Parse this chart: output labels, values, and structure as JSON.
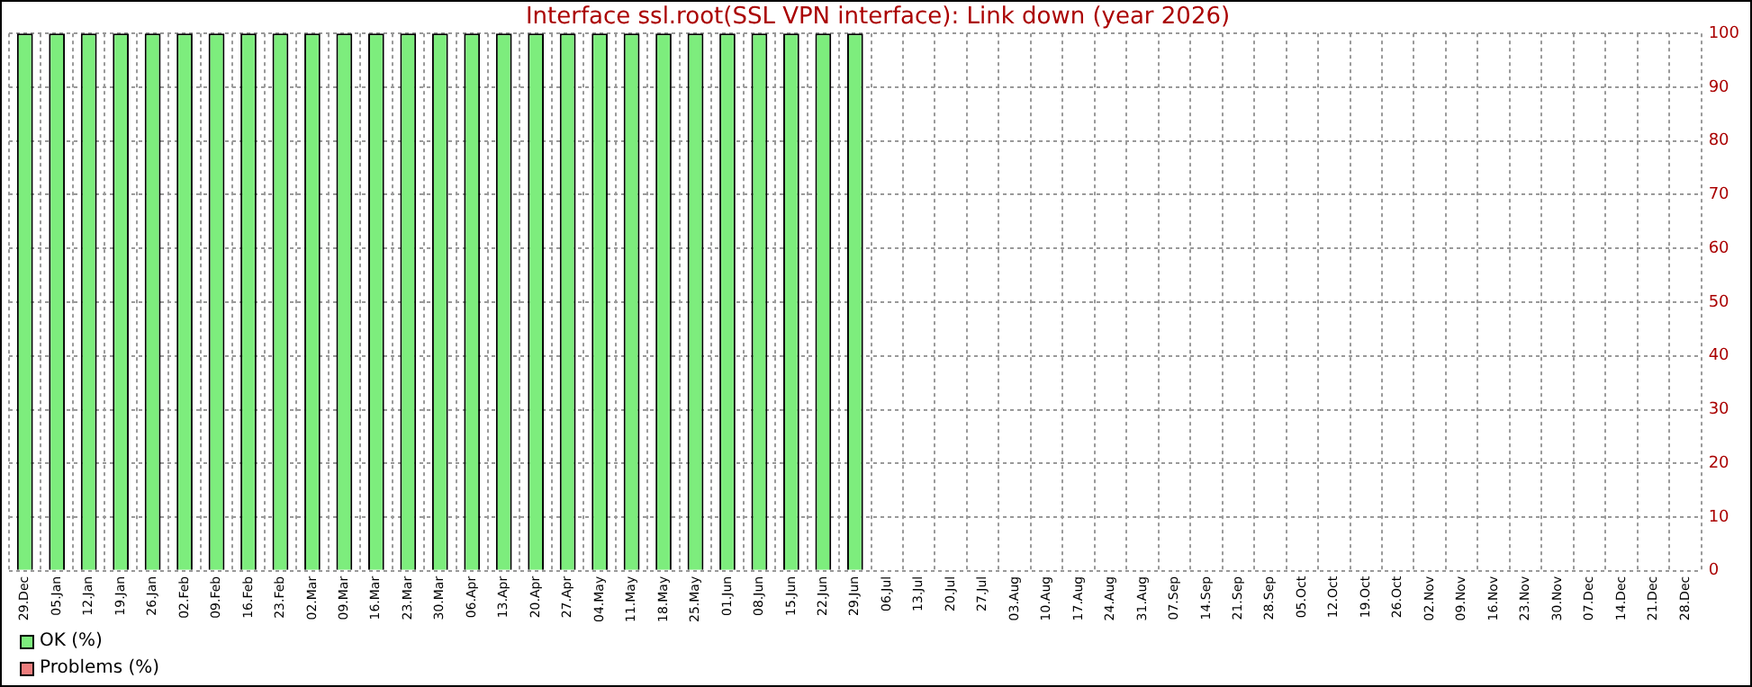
{
  "chart_data": {
    "type": "bar",
    "title": "Interface ssl.root(SSL VPN interface): Link down (year 2026)",
    "categories": [
      "29.Dec",
      "05.Jan",
      "12.Jan",
      "19.Jan",
      "26.Jan",
      "02.Feb",
      "09.Feb",
      "16.Feb",
      "23.Feb",
      "02.Mar",
      "09.Mar",
      "16.Mar",
      "23.Mar",
      "30.Mar",
      "06.Apr",
      "13.Apr",
      "20.Apr",
      "27.Apr",
      "04.May",
      "11.May",
      "18.May",
      "25.May",
      "01.Jun",
      "08.Jun",
      "15.Jun",
      "22.Jun",
      "29.Jun",
      "06.Jul",
      "13.Jul",
      "20.Jul",
      "27.Jul",
      "03.Aug",
      "10.Aug",
      "17.Aug",
      "24.Aug",
      "31.Aug",
      "07.Sep",
      "14.Sep",
      "21.Sep",
      "28.Sep",
      "05.Oct",
      "12.Oct",
      "19.Oct",
      "26.Oct",
      "02.Nov",
      "09.Nov",
      "16.Nov",
      "23.Nov",
      "30.Nov",
      "07.Dec",
      "14.Dec",
      "21.Dec",
      "28.Dec"
    ],
    "series": [
      {
        "name": "OK (%)",
        "color": "#7ded7d",
        "values": [
          100,
          100,
          100,
          100,
          100,
          100,
          100,
          100,
          100,
          100,
          100,
          100,
          100,
          100,
          100,
          100,
          100,
          100,
          100,
          100,
          100,
          100,
          100,
          100,
          100,
          100,
          100,
          null,
          null,
          null,
          null,
          null,
          null,
          null,
          null,
          null,
          null,
          null,
          null,
          null,
          null,
          null,
          null,
          null,
          null,
          null,
          null,
          null,
          null,
          null,
          null,
          null,
          null
        ]
      },
      {
        "name": "Problems (%)",
        "color": "#ed7d7d",
        "values": [
          0,
          0,
          0,
          0,
          0,
          0,
          0,
          0,
          0,
          0,
          0,
          0,
          0,
          0,
          0,
          0,
          0,
          0,
          0,
          0,
          0,
          0,
          0,
          0,
          0,
          0,
          0,
          null,
          null,
          null,
          null,
          null,
          null,
          null,
          null,
          null,
          null,
          null,
          null,
          null,
          null,
          null,
          null,
          null,
          null,
          null,
          null,
          null,
          null,
          null,
          null,
          null,
          null
        ]
      }
    ],
    "stacked": true,
    "ylim": [
      0,
      100
    ],
    "yticks": [
      0,
      10,
      20,
      30,
      40,
      50,
      60,
      70,
      80,
      90,
      100
    ],
    "grid": true,
    "legend": "bottom left"
  }
}
